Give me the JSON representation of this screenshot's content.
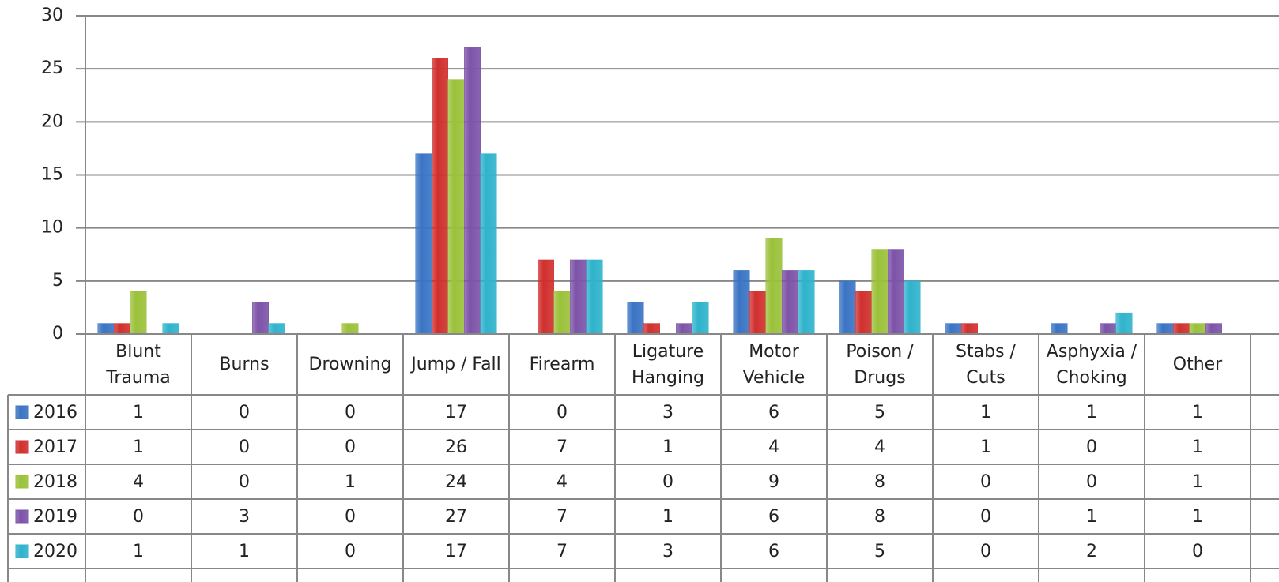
{
  "chart_data": {
    "type": "bar",
    "categories": [
      "Blunt\nTrauma",
      "Burns",
      "Drowning",
      "Jump / Fall",
      "Firearm",
      "Ligature\nHanging",
      "Motor\nVehicle",
      "Poison /\nDrugs",
      "Stabs /\nCuts",
      "Asphyxia /\nChoking",
      "Other"
    ],
    "series": [
      {
        "name": "2016",
        "color": "#3a74c4",
        "values": [
          1,
          0,
          0,
          17,
          0,
          3,
          6,
          5,
          1,
          1,
          1
        ]
      },
      {
        "name": "2017",
        "color": "#d0302e",
        "values": [
          1,
          0,
          0,
          26,
          7,
          1,
          4,
          4,
          1,
          0,
          1
        ]
      },
      {
        "name": "2018",
        "color": "#9bc13a",
        "values": [
          4,
          0,
          1,
          24,
          4,
          0,
          9,
          8,
          0,
          0,
          1
        ]
      },
      {
        "name": "2019",
        "color": "#7d53a8",
        "values": [
          0,
          3,
          0,
          27,
          7,
          1,
          6,
          8,
          0,
          1,
          1
        ]
      },
      {
        "name": "2020",
        "color": "#2fb3cc",
        "values": [
          1,
          1,
          0,
          17,
          7,
          3,
          6,
          5,
          0,
          2,
          0
        ]
      }
    ],
    "ylim": [
      0,
      30
    ],
    "yticks": [
      0,
      5,
      10,
      15,
      20,
      25,
      30
    ],
    "grid": true,
    "legend": "data-table"
  }
}
